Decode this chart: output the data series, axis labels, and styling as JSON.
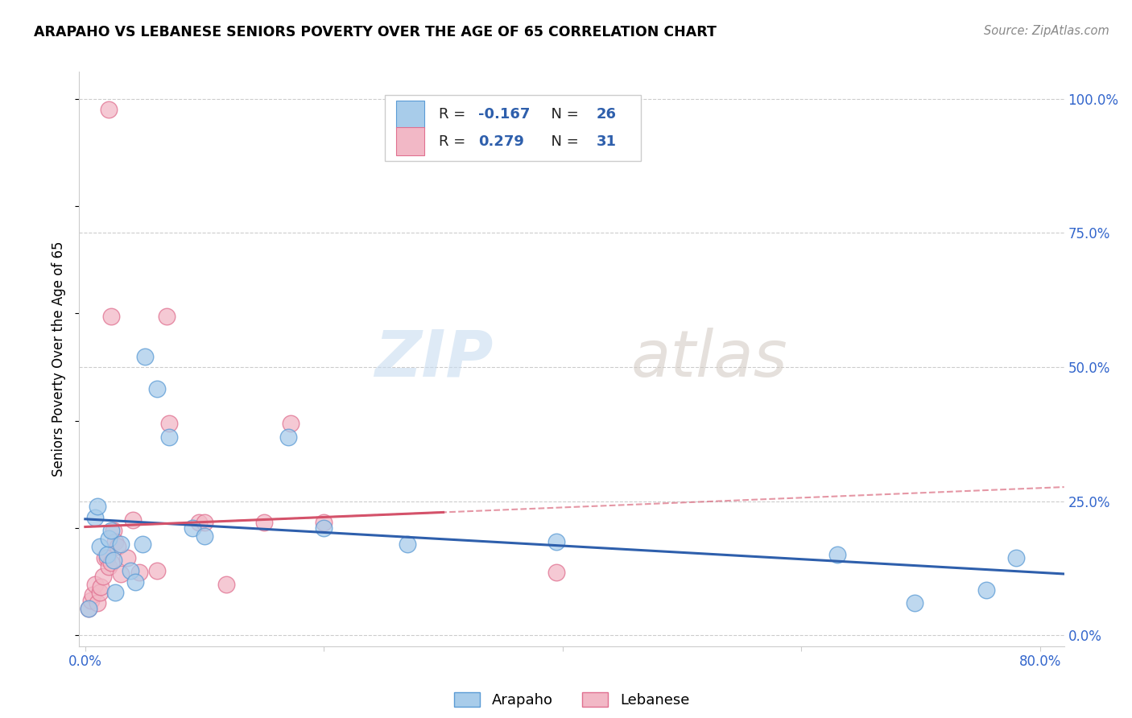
{
  "title": "ARAPAHO VS LEBANESE SENIORS POVERTY OVER THE AGE OF 65 CORRELATION CHART",
  "source": "Source: ZipAtlas.com",
  "ylabel": "Seniors Poverty Over the Age of 65",
  "xlim": [
    -0.005,
    0.82
  ],
  "ylim": [
    -0.02,
    1.05
  ],
  "xticks": [
    0.0,
    0.2,
    0.4,
    0.6,
    0.8
  ],
  "xtick_labels": [
    "0.0%",
    "",
    "",
    "",
    "80.0%"
  ],
  "ytick_labels_right": [
    "0.0%",
    "25.0%",
    "50.0%",
    "75.0%",
    "100.0%"
  ],
  "yticks_right": [
    0.0,
    0.25,
    0.5,
    0.75,
    1.0
  ],
  "grid_yticks": [
    0.0,
    0.25,
    0.5,
    0.75,
    1.0
  ],
  "watermark_zip": "ZIP",
  "watermark_atlas": "atlas",
  "arapaho_color": "#A8CCEA",
  "lebanese_color": "#F2B8C6",
  "arapaho_edge_color": "#5B9BD5",
  "lebanese_edge_color": "#E07090",
  "arapaho_line_color": "#2E5FAC",
  "lebanese_line_color": "#D4526A",
  "arapaho_R": -0.167,
  "arapaho_N": 26,
  "lebanese_R": 0.279,
  "lebanese_N": 31,
  "arapaho_x": [
    0.003,
    0.008,
    0.01,
    0.012,
    0.018,
    0.02,
    0.022,
    0.024,
    0.025,
    0.03,
    0.038,
    0.042,
    0.048,
    0.05,
    0.06,
    0.07,
    0.09,
    0.1,
    0.17,
    0.2,
    0.27,
    0.395,
    0.63,
    0.695,
    0.755,
    0.78
  ],
  "arapaho_y": [
    0.05,
    0.22,
    0.24,
    0.165,
    0.15,
    0.18,
    0.195,
    0.14,
    0.08,
    0.17,
    0.12,
    0.1,
    0.17,
    0.52,
    0.46,
    0.37,
    0.2,
    0.185,
    0.37,
    0.2,
    0.17,
    0.175,
    0.15,
    0.06,
    0.085,
    0.145
  ],
  "lebanese_x": [
    0.003,
    0.005,
    0.006,
    0.008,
    0.01,
    0.012,
    0.013,
    0.015,
    0.016,
    0.018,
    0.02,
    0.022,
    0.024,
    0.025,
    0.027,
    0.03,
    0.035,
    0.04,
    0.045,
    0.06,
    0.07,
    0.095,
    0.1,
    0.118,
    0.15,
    0.172,
    0.2,
    0.395,
    0.02,
    0.022,
    0.068
  ],
  "lebanese_y": [
    0.05,
    0.065,
    0.075,
    0.095,
    0.06,
    0.08,
    0.09,
    0.11,
    0.145,
    0.145,
    0.128,
    0.135,
    0.195,
    0.175,
    0.165,
    0.115,
    0.145,
    0.215,
    0.118,
    0.12,
    0.395,
    0.21,
    0.21,
    0.095,
    0.21,
    0.395,
    0.21,
    0.118,
    0.98,
    0.595,
    0.595
  ]
}
